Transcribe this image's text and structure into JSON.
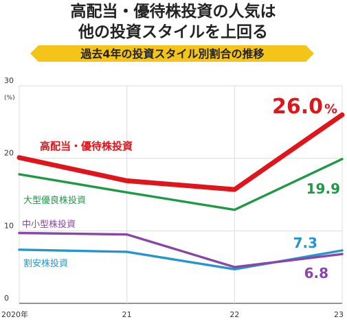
{
  "chart_data": {
    "type": "line",
    "title": "高配当・優待株投資の人気は\n他の投資スタイルを上回る",
    "subtitle": "過去4年の投資スタイル別割合の推移",
    "unit_label": "(%)",
    "categories": [
      "2020年",
      "21",
      "22",
      "23"
    ],
    "ylim": [
      0,
      30
    ],
    "yticks": [
      0,
      10,
      20,
      30
    ],
    "grid": true,
    "series": [
      {
        "name": "高配当・優待株投資",
        "values": [
          20.1,
          16.9,
          15.7,
          26.0
        ],
        "color": "#e0151b",
        "end_label": "26.0",
        "end_label_suffix": "%"
      },
      {
        "name": "大型優良株投資",
        "values": [
          17.8,
          15.3,
          12.9,
          19.9
        ],
        "color": "#1e9a45",
        "end_label": "19.9"
      },
      {
        "name": "中小型株投資",
        "values": [
          9.7,
          9.5,
          5.0,
          6.8
        ],
        "color": "#8a45a8",
        "end_label": "6.8"
      },
      {
        "name": "割安株投資",
        "values": [
          7.4,
          7.1,
          4.7,
          7.3
        ],
        "color": "#2496cd",
        "end_label": "7.3"
      }
    ],
    "colors": {
      "banner": "#f5c418",
      "grid": "#dcdcdc",
      "axis": "#555555",
      "title": "#222222"
    }
  }
}
